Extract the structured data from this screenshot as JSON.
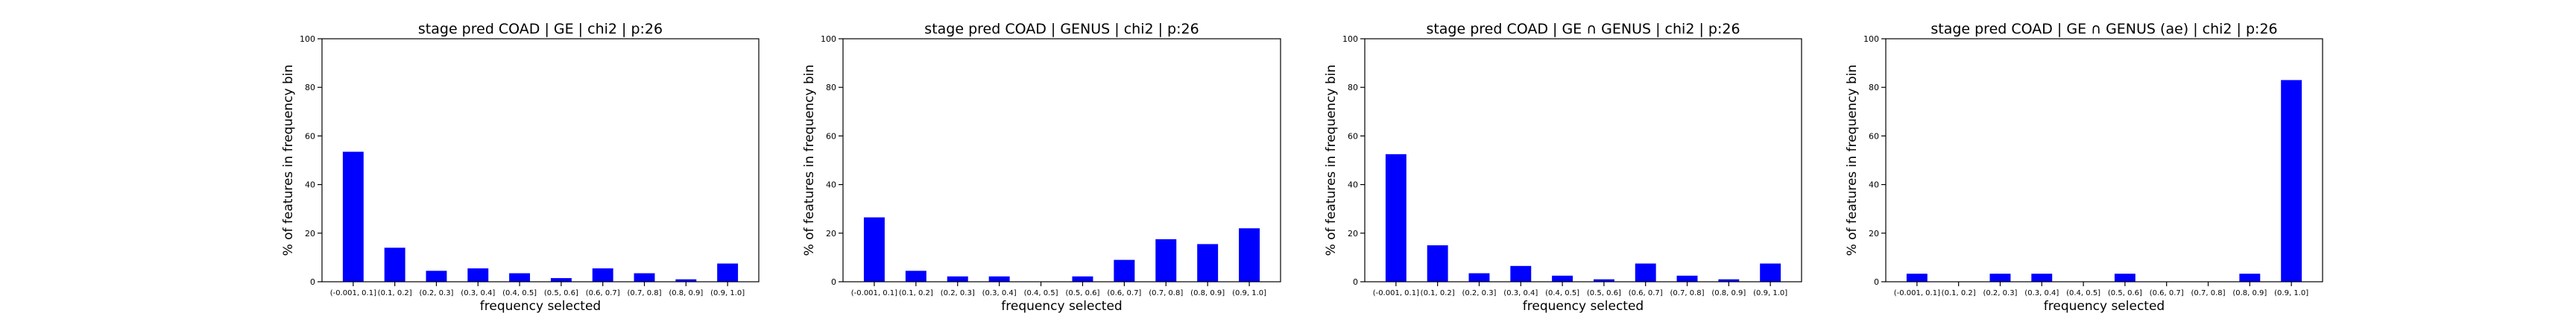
{
  "chart_data": [
    {
      "type": "bar",
      "title": "stage pred COAD | GE | chi2 | p:26",
      "xlabel": "frequency selected",
      "ylabel": "% of features in frequency bin",
      "ylim": [
        0,
        100
      ],
      "yticks": [
        0,
        20,
        40,
        60,
        80,
        100
      ],
      "categories": [
        "(-0.001, 0.1]",
        "(0.1, 0.2]",
        "(0.2, 0.3]",
        "(0.3, 0.4]",
        "(0.4, 0.5]",
        "(0.5, 0.6]",
        "(0.6, 0.7]",
        "(0.7, 0.8]",
        "(0.8, 0.9]",
        "(0.9, 1.0]"
      ],
      "values": [
        53.5,
        14,
        4.5,
        5.5,
        3.5,
        1.5,
        5.5,
        3.5,
        1,
        7.5
      ],
      "color": "#0000ff"
    },
    {
      "type": "bar",
      "title": "stage pred COAD | GENUS | chi2 | p:26",
      "xlabel": "frequency selected",
      "ylabel": "% of features in frequency bin",
      "ylim": [
        0,
        100
      ],
      "yticks": [
        0,
        20,
        40,
        60,
        80,
        100
      ],
      "categories": [
        "(-0.001, 0.1]",
        "(0.1, 0.2]",
        "(0.2, 0.3]",
        "(0.3, 0.4]",
        "(0.4, 0.5]",
        "(0.5, 0.6]",
        "(0.6, 0.7]",
        "(0.7, 0.8]",
        "(0.8, 0.9]",
        "(0.9, 1.0]"
      ],
      "values": [
        26.5,
        4.5,
        2.2,
        2.2,
        0,
        2.2,
        9,
        17.5,
        15.5,
        22
      ],
      "color": "#0000ff"
    },
    {
      "type": "bar",
      "title": "stage pred COAD | GE ∩ GENUS | chi2 | p:26",
      "xlabel": "frequency selected",
      "ylabel": "% of features in frequency bin",
      "ylim": [
        0,
        100
      ],
      "yticks": [
        0,
        20,
        40,
        60,
        80,
        100
      ],
      "categories": [
        "(-0.001, 0.1]",
        "(0.1, 0.2]",
        "(0.2, 0.3]",
        "(0.3, 0.4]",
        "(0.4, 0.5]",
        "(0.5, 0.6]",
        "(0.6, 0.7]",
        "(0.7, 0.8]",
        "(0.8, 0.9]",
        "(0.9, 1.0]"
      ],
      "values": [
        52.5,
        15,
        3.5,
        6.5,
        2.5,
        1,
        7.5,
        2.5,
        1,
        7.5
      ],
      "color": "#0000ff"
    },
    {
      "type": "bar",
      "title": "stage pred COAD | GE ∩ GENUS (ae) | chi2 | p:26",
      "xlabel": "frequency selected",
      "ylabel": "% of features in frequency bin",
      "ylim": [
        0,
        100
      ],
      "yticks": [
        0,
        20,
        40,
        60,
        80,
        100
      ],
      "categories": [
        "(-0.001, 0.1]",
        "(0.1, 0.2]",
        "(0.2, 0.3]",
        "(0.3, 0.4]",
        "(0.4, 0.5]",
        "(0.5, 0.6]",
        "(0.6, 0.7]",
        "(0.7, 0.8]",
        "(0.8, 0.9]",
        "(0.9, 1.0]"
      ],
      "values": [
        3.3,
        0,
        3.3,
        3.3,
        0,
        3.3,
        0,
        0,
        3.3,
        83
      ],
      "color": "#0000ff"
    }
  ]
}
